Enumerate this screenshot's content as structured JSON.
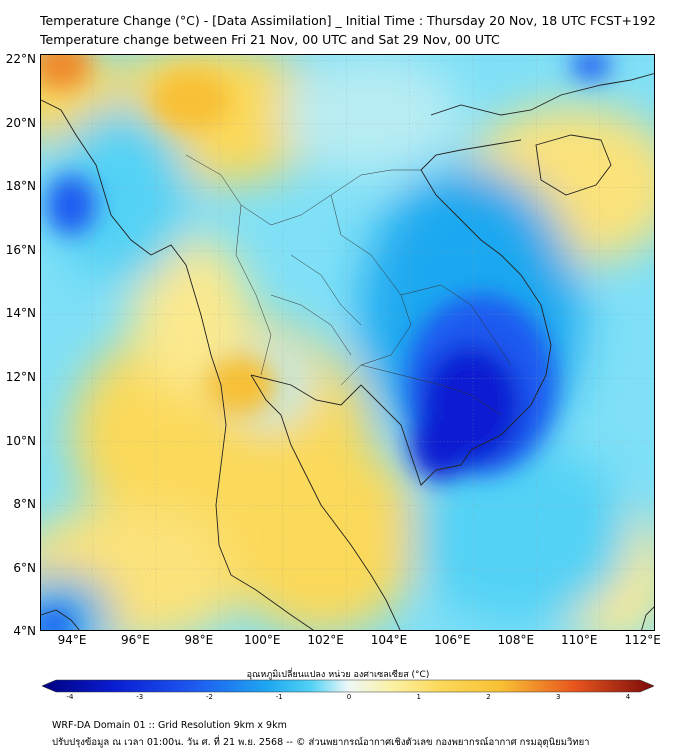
{
  "header": {
    "title_line1": "Temperature Change (°C) - [Data Assimilation] _ Initial Time : Thursday 20 Nov, 18 UTC FCST+192",
    "title_line2": "Temperature change between Fri 21 Nov, 00 UTC and Sat 29 Nov, 00 UTC"
  },
  "map": {
    "lat_labels": [
      "22°N",
      "20°N",
      "18°N",
      "16°N",
      "14°N",
      "12°N",
      "10°N",
      "8°N",
      "6°N",
      "4°N"
    ],
    "lon_labels": [
      "94°E",
      "96°E",
      "98°E",
      "100°E",
      "102°E",
      "104°E",
      "106°E",
      "108°E",
      "110°E",
      "112°E"
    ],
    "colors": {
      "cold_extreme": "#0a1ed2",
      "cold_strong": "#1e5af0",
      "cold": "#1fa8f0",
      "cool": "#52d2f5",
      "neutral": "#dff4f6",
      "warm_light": "#fbf1a6",
      "warm": "#fbd95a",
      "warm_strong": "#f8c034",
      "hot": "#f08a2a",
      "coast": "#222222"
    }
  },
  "colorbar": {
    "label": "อุณหภูมิเปลี่ยนแปลง หน่วย องศาเซลเซียส (°C)",
    "ticks": [
      "-4",
      "-3",
      "-2",
      "-1",
      "0",
      "1",
      "2",
      "3",
      "4"
    ],
    "min": -4,
    "max": 4
  },
  "footer": {
    "line1": "WRF-DA Domain 01 :: Grid Resolution 9km x 9km",
    "line2": "ปรับปรุงข้อมูล ณ เวลา 01:00น. วัน ศ. ที่ 21 พ.ย. 2568 -- © ส่วนพยากรณ์อากาศเชิงตัวเลข กองพยากรณ์อากาศ กรมอุตุนิยมวิทยา"
  }
}
